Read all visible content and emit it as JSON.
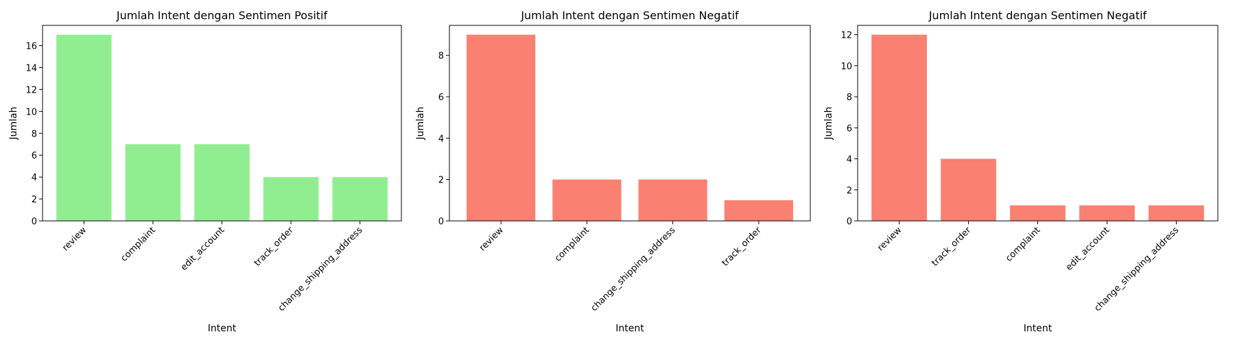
{
  "chart_data": [
    {
      "type": "bar",
      "title": "Jumlah Intent dengan Sentimen Positif",
      "xlabel": "Intent",
      "ylabel": "Jumlah",
      "categories": [
        "review",
        "complaint",
        "edit_account",
        "track_order",
        "change_shipping_address"
      ],
      "values": [
        17,
        7,
        7,
        4,
        4
      ],
      "ylim": [
        0,
        17.85
      ],
      "yticks": [
        0,
        2,
        4,
        6,
        8,
        10,
        12,
        14,
        16
      ],
      "color": "#90ee90",
      "grid": false
    },
    {
      "type": "bar",
      "title": "Jumlah Intent dengan Sentimen Negatif",
      "xlabel": "Intent",
      "ylabel": "Jumlah",
      "categories": [
        "review",
        "complaint",
        "change_shipping_address",
        "track_order"
      ],
      "values": [
        9,
        2,
        2,
        1
      ],
      "ylim": [
        0,
        9.45
      ],
      "yticks": [
        0,
        2,
        4,
        6,
        8
      ],
      "color": "#fa8072",
      "grid": false
    },
    {
      "type": "bar",
      "title": "Jumlah Intent dengan Sentimen Negatif",
      "xlabel": "Intent",
      "ylabel": "Jumlah",
      "categories": [
        "review",
        "track_order",
        "complaint",
        "edit_account",
        "change_shipping_address"
      ],
      "values": [
        12,
        4,
        1,
        1,
        1
      ],
      "ylim": [
        0,
        12.6
      ],
      "yticks": [
        0,
        2,
        4,
        6,
        8,
        10,
        12
      ],
      "color": "#fa8072",
      "grid": false
    }
  ]
}
